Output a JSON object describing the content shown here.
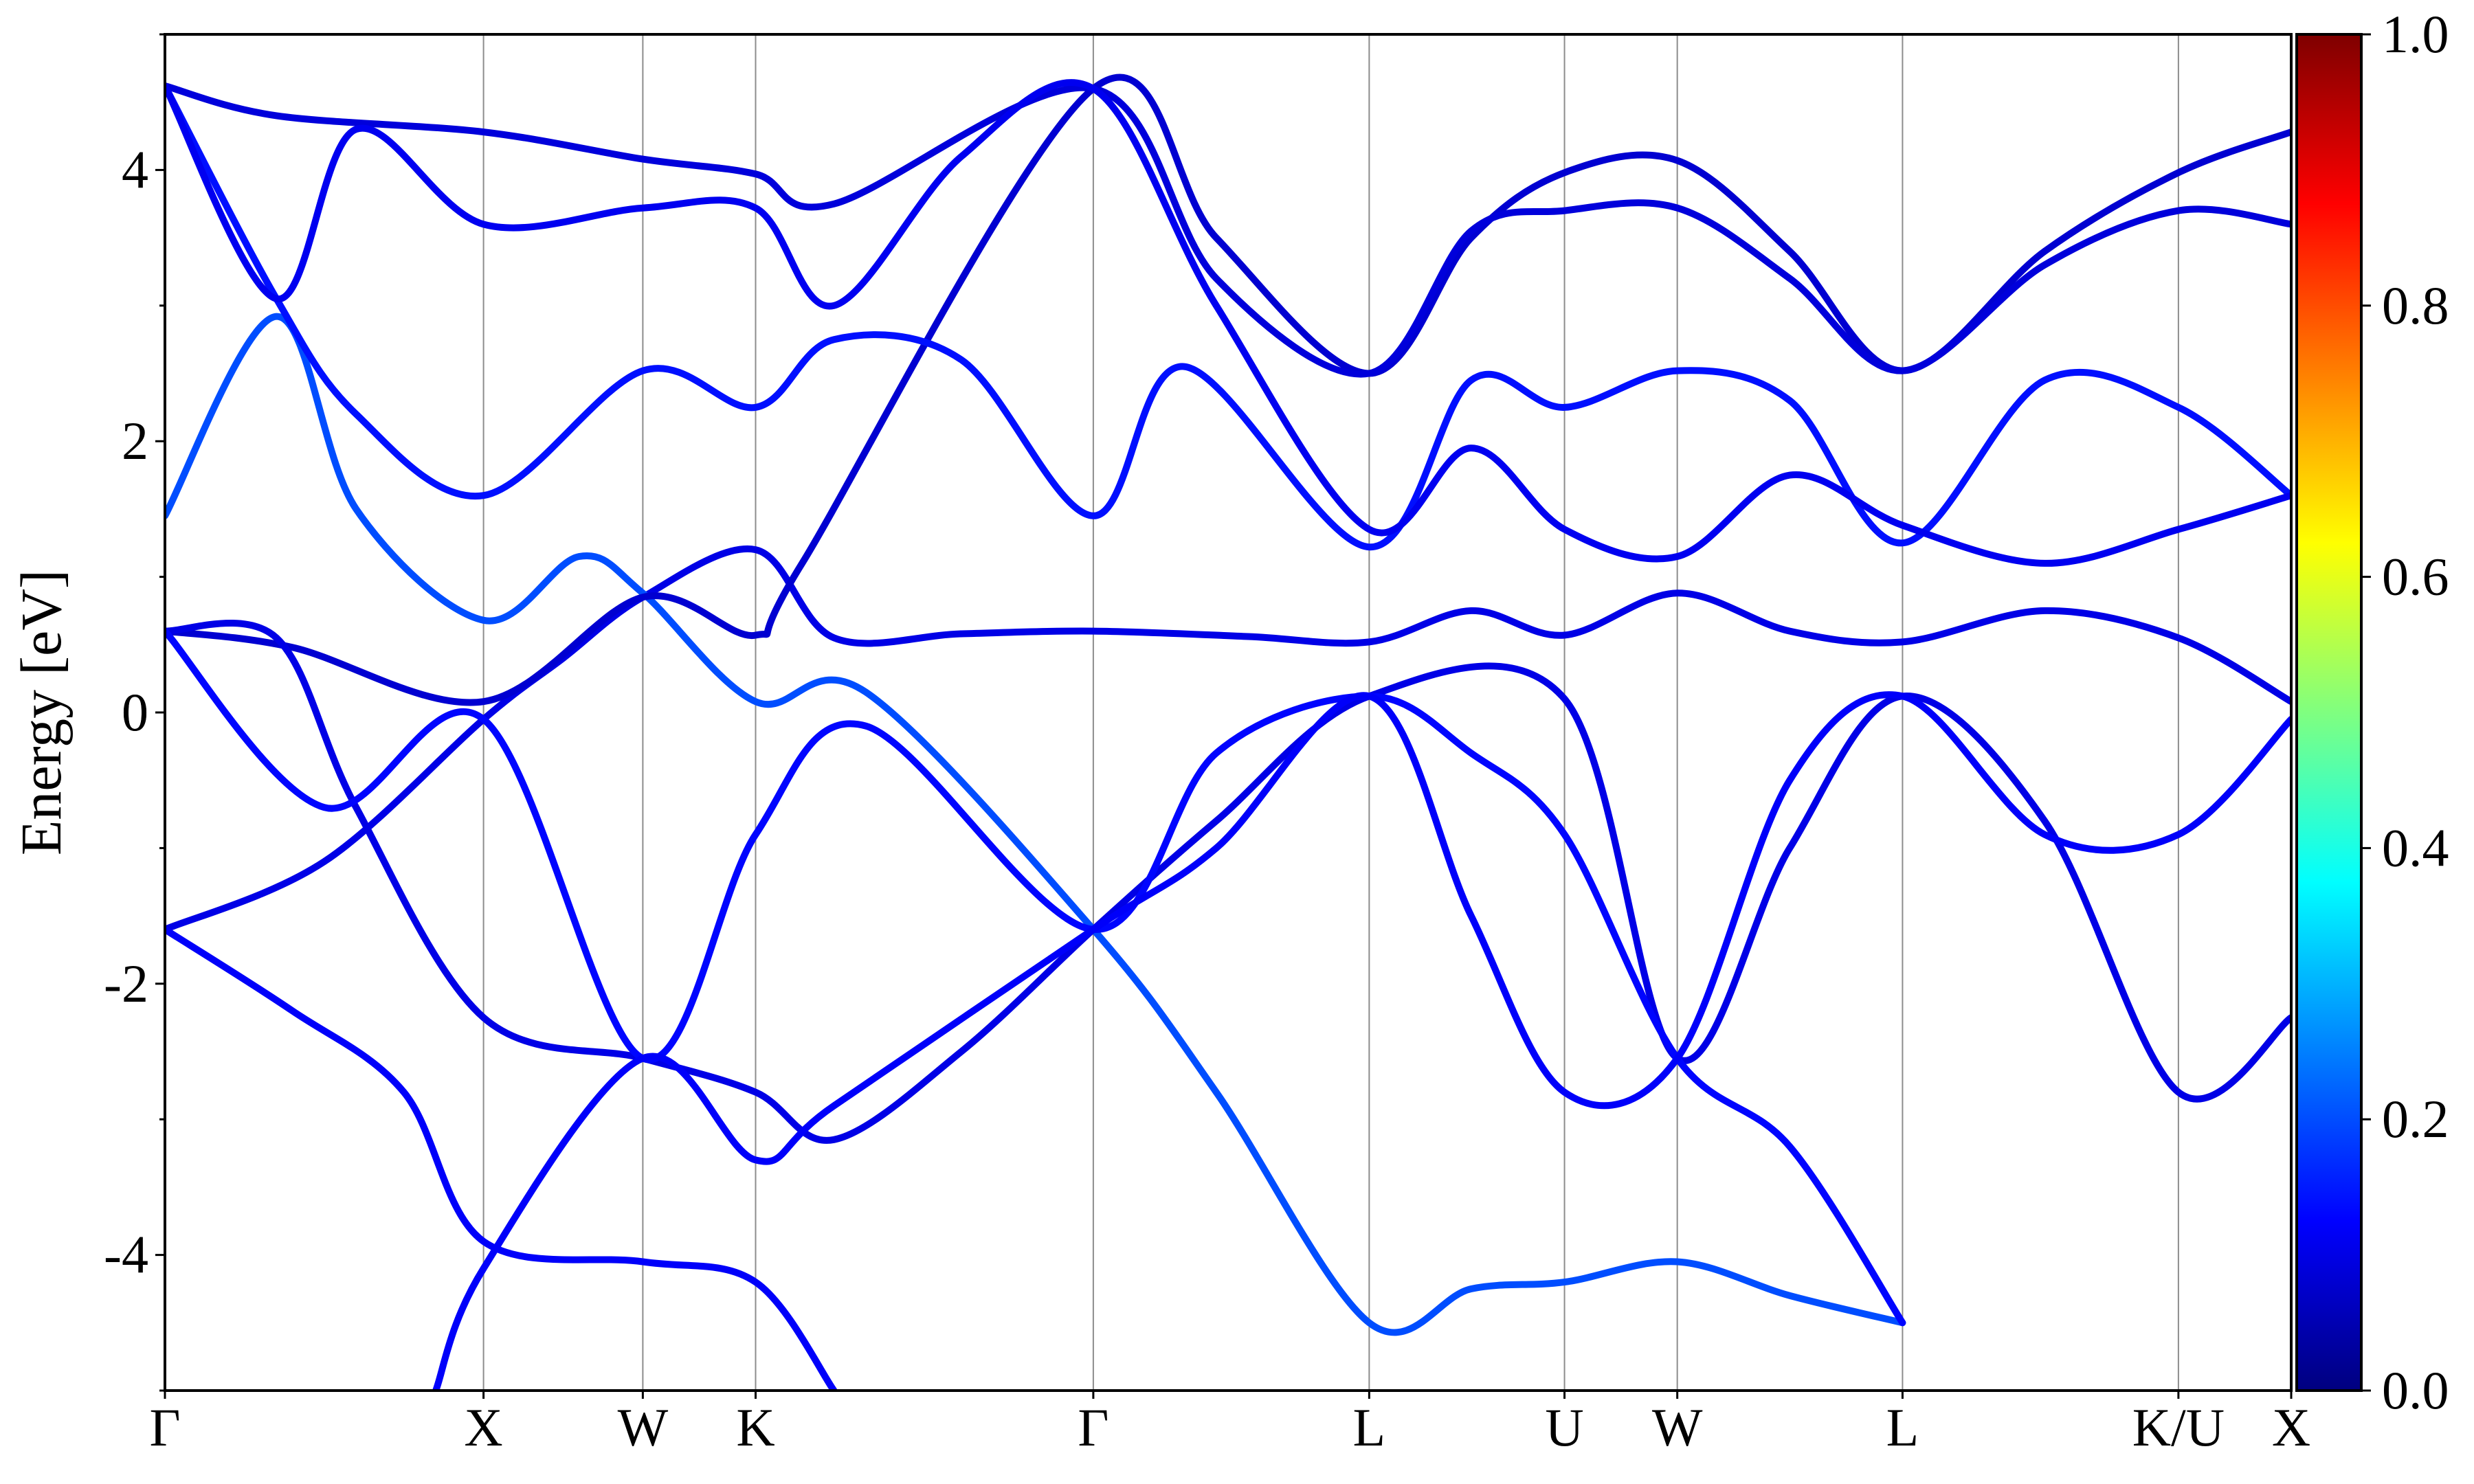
{
  "chart_data": {
    "type": "line",
    "title": "",
    "xlabel": "",
    "ylabel": "Energy [eV]",
    "ylim": [
      -5,
      5
    ],
    "yticks": [
      -4,
      -2,
      0,
      2,
      4
    ],
    "grid": "vertical lines at high-symmetry points",
    "kpoints": [
      {
        "label": "Γ",
        "x": 0.0
      },
      {
        "label": "X",
        "x": 1.0
      },
      {
        "label": "W",
        "x": 1.5
      },
      {
        "label": "K",
        "x": 1.854
      },
      {
        "label": "Γ",
        "x": 2.914
      },
      {
        "label": "L",
        "x": 3.78
      },
      {
        "label": "U",
        "x": 4.393
      },
      {
        "label": "W",
        "x": 4.747
      },
      {
        "label": "L",
        "x": 5.454
      },
      {
        "label": "K/U",
        "x": 6.32
      },
      {
        "label": "X",
        "x": 6.674
      }
    ],
    "colorbar": {
      "colormap": "jet",
      "range": [
        0.0,
        1.0
      ],
      "ticks": [
        "0.0",
        "0.2",
        "0.4",
        "0.6",
        "0.8",
        "1.0"
      ]
    },
    "series": [
      {
        "weight": 0.1,
        "points": [
          [
            0,
            -1.6
          ],
          [
            0.5,
            -1.1
          ],
          [
            1.0,
            -0.05
          ],
          [
            1.25,
            0.4
          ],
          [
            1.5,
            0.85
          ],
          [
            1.854,
            1.2
          ],
          [
            2.1,
            0.55
          ],
          [
            2.5,
            0.58
          ],
          [
            2.914,
            0.6
          ],
          [
            3.4,
            0.56
          ],
          [
            3.78,
            0.52
          ],
          [
            4.1,
            0.75
          ],
          [
            4.393,
            0.57
          ],
          [
            4.747,
            0.88
          ],
          [
            5.1,
            0.6
          ],
          [
            5.454,
            0.52
          ],
          [
            5.9,
            0.75
          ],
          [
            6.32,
            0.55
          ],
          [
            6.674,
            0.08
          ]
        ]
      },
      {
        "weight": 0.12,
        "points": [
          [
            0,
            -1.6
          ],
          [
            0.4,
            -2.2
          ],
          [
            0.75,
            -2.8
          ],
          [
            1.0,
            -3.9
          ],
          [
            1.5,
            -4.05
          ],
          [
            1.854,
            -4.2
          ],
          [
            2.1,
            -5.0
          ]
        ]
      },
      {
        "weight": 0.2,
        "points": [
          [
            0,
            1.45
          ],
          [
            0.35,
            2.92
          ],
          [
            0.6,
            1.5
          ],
          [
            1.0,
            0.68
          ],
          [
            1.3,
            1.15
          ],
          [
            1.5,
            0.88
          ],
          [
            1.854,
            0.08
          ],
          [
            2.2,
            0.15
          ],
          [
            2.914,
            -1.6
          ],
          [
            3.3,
            -2.8
          ],
          [
            3.78,
            -4.5
          ],
          [
            4.1,
            -4.25
          ],
          [
            4.393,
            -4.2
          ],
          [
            4.747,
            -4.05
          ],
          [
            5.1,
            -4.3
          ],
          [
            5.454,
            -4.5
          ]
        ]
      },
      {
        "weight": 0.08,
        "points": [
          [
            0,
            0.6
          ],
          [
            0.4,
            0.48
          ],
          [
            1.0,
            0.08
          ],
          [
            1.5,
            0.85
          ],
          [
            1.854,
            0.57
          ],
          [
            2.0,
            1.1
          ],
          [
            2.914,
            4.6
          ],
          [
            3.3,
            3.5
          ],
          [
            3.78,
            2.5
          ],
          [
            4.1,
            3.5
          ],
          [
            4.393,
            3.98
          ],
          [
            4.747,
            4.07
          ],
          [
            5.1,
            3.4
          ],
          [
            5.454,
            2.52
          ],
          [
            5.9,
            3.4
          ],
          [
            6.32,
            3.98
          ],
          [
            6.674,
            4.28
          ]
        ]
      },
      {
        "weight": 0.1,
        "points": [
          [
            0,
            0.6
          ],
          [
            0.35,
            0.55
          ],
          [
            0.6,
            -0.7
          ],
          [
            1.0,
            -2.25
          ],
          [
            1.5,
            -2.55
          ],
          [
            1.854,
            -2.8
          ],
          [
            2.1,
            -3.15
          ],
          [
            2.5,
            -2.5
          ],
          [
            2.914,
            -1.6
          ],
          [
            3.3,
            -0.8
          ],
          [
            3.78,
            0.12
          ],
          [
            4.393,
            0.1
          ],
          [
            4.747,
            -2.55
          ],
          [
            5.1,
            -1.0
          ],
          [
            5.454,
            0.12
          ],
          [
            5.9,
            -0.8
          ],
          [
            6.32,
            -2.8
          ],
          [
            6.674,
            -2.25
          ]
        ]
      },
      {
        "weight": 0.14,
        "points": [
          [
            0,
            4.62
          ],
          [
            0.35,
            3.05
          ],
          [
            0.6,
            2.2
          ],
          [
            1.0,
            1.6
          ],
          [
            1.5,
            2.52
          ],
          [
            1.854,
            2.25
          ],
          [
            2.1,
            2.75
          ],
          [
            2.5,
            2.6
          ],
          [
            2.914,
            1.45
          ],
          [
            3.2,
            2.55
          ],
          [
            3.78,
            1.22
          ],
          [
            4.1,
            2.45
          ],
          [
            4.393,
            2.25
          ],
          [
            4.747,
            2.52
          ],
          [
            5.1,
            2.3
          ],
          [
            5.454,
            1.25
          ],
          [
            5.9,
            2.45
          ],
          [
            6.32,
            2.25
          ],
          [
            6.674,
            1.6
          ]
        ]
      },
      {
        "weight": 0.09,
        "points": [
          [
            0,
            4.62
          ],
          [
            0.35,
            4.4
          ],
          [
            1.0,
            4.28
          ],
          [
            1.5,
            4.08
          ],
          [
            1.854,
            3.97
          ],
          [
            2.1,
            3.75
          ],
          [
            2.914,
            4.6
          ],
          [
            3.3,
            3.2
          ],
          [
            3.78,
            2.5
          ],
          [
            4.1,
            3.55
          ],
          [
            4.393,
            3.7
          ],
          [
            4.747,
            3.72
          ],
          [
            5.1,
            3.2
          ],
          [
            5.454,
            2.52
          ],
          [
            5.9,
            3.3
          ],
          [
            6.32,
            3.7
          ],
          [
            6.674,
            3.6
          ]
        ]
      },
      {
        "weight": 0.11,
        "points": [
          [
            0,
            4.62
          ],
          [
            0.35,
            3.05
          ],
          [
            0.6,
            4.3
          ],
          [
            1.0,
            3.6
          ],
          [
            1.5,
            3.72
          ],
          [
            1.854,
            3.72
          ],
          [
            2.1,
            3.0
          ],
          [
            2.5,
            4.1
          ],
          [
            2.914,
            4.6
          ],
          [
            3.3,
            3.0
          ],
          [
            3.78,
            1.35
          ],
          [
            4.1,
            1.95
          ],
          [
            4.393,
            1.35
          ],
          [
            4.747,
            1.15
          ],
          [
            5.1,
            1.75
          ],
          [
            5.454,
            1.38
          ],
          [
            5.9,
            1.1
          ],
          [
            6.32,
            1.35
          ],
          [
            6.674,
            1.6
          ]
        ]
      },
      {
        "weight": 0.13,
        "points": [
          [
            0,
            0.6
          ],
          [
            0.5,
            -0.7
          ],
          [
            1.0,
            -0.05
          ],
          [
            1.5,
            -2.55
          ],
          [
            1.854,
            -0.9
          ],
          [
            2.2,
            -0.1
          ],
          [
            2.914,
            -1.6
          ],
          [
            3.3,
            -0.3
          ],
          [
            3.78,
            0.12
          ],
          [
            4.1,
            -0.3
          ],
          [
            4.393,
            -0.9
          ],
          [
            4.747,
            -2.55
          ],
          [
            5.1,
            -3.2
          ],
          [
            5.454,
            -4.5
          ]
        ]
      },
      {
        "weight": 0.12,
        "points": [
          [
            0.85,
            -5.0
          ],
          [
            1.0,
            -4.1
          ],
          [
            1.5,
            -2.55
          ],
          [
            1.854,
            -3.3
          ],
          [
            2.1,
            -2.9
          ],
          [
            2.914,
            -1.6
          ],
          [
            3.3,
            -1.0
          ],
          [
            3.78,
            0.12
          ],
          [
            4.1,
            -1.5
          ],
          [
            4.393,
            -2.8
          ],
          [
            4.747,
            -2.55
          ],
          [
            5.1,
            -0.5
          ],
          [
            5.454,
            0.12
          ],
          [
            5.9,
            -0.9
          ],
          [
            6.32,
            -0.9
          ],
          [
            6.674,
            -0.05
          ]
        ]
      }
    ]
  }
}
